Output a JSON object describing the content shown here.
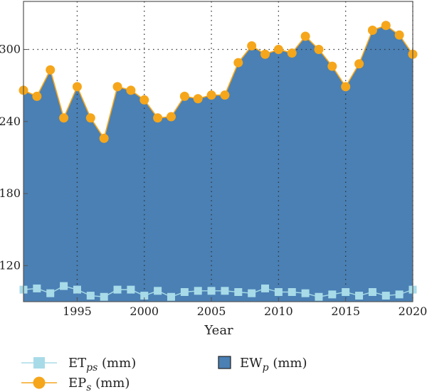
{
  "chart_data": {
    "type": "area",
    "title": "",
    "xlabel": "Year",
    "ylabel": "",
    "xlim": [
      1991,
      2020
    ],
    "ylim": [
      90,
      340
    ],
    "x_ticks": [
      1995,
      2000,
      2005,
      2010,
      2015,
      2020
    ],
    "y_ticks": [
      120,
      180,
      240,
      300
    ],
    "grid": "dotted vertical lines at year ticks, horizontal dotted line at 300",
    "legend_placement": "bottom",
    "x": [
      1991,
      1992,
      1993,
      1994,
      1995,
      1996,
      1997,
      1998,
      1999,
      2000,
      2001,
      2002,
      2003,
      2004,
      2005,
      2006,
      2007,
      2008,
      2009,
      2010,
      2011,
      2012,
      2013,
      2014,
      2015,
      2016,
      2017,
      2018,
      2019,
      2020
    ],
    "series": [
      {
        "key": "ew",
        "name_base": "EW",
        "name_sub": "p",
        "name_unit": " (mm)",
        "style": "filled area",
        "color": "#4a80b4",
        "values": [
          266,
          261,
          283,
          243,
          269,
          243,
          226,
          269,
          266,
          258,
          243,
          244,
          261,
          259,
          262,
          262,
          289,
          303,
          296,
          300,
          297,
          311,
          300,
          286,
          269,
          288,
          316,
          320,
          312,
          296
        ]
      },
      {
        "key": "ep",
        "name_base": "EP",
        "name_sub": "s",
        "name_unit": " (mm)",
        "style": "line with circle markers",
        "color": "#f5a61b",
        "values": [
          266,
          261,
          283,
          243,
          269,
          243,
          226,
          269,
          266,
          258,
          243,
          244,
          261,
          259,
          262,
          262,
          289,
          303,
          296,
          300,
          297,
          311,
          300,
          286,
          269,
          288,
          316,
          320,
          312,
          296
        ]
      },
      {
        "key": "et",
        "name_base": "ET",
        "name_sub": "ps",
        "name_unit": " (mm)",
        "style": "line with square markers",
        "color": "#a8dbe8",
        "values": [
          100,
          101,
          97,
          103,
          100,
          95,
          94,
          100,
          100,
          95,
          99,
          94,
          98,
          99,
          99,
          99,
          98,
          97,
          101,
          98,
          98,
          97,
          94,
          96,
          98,
          95,
          98,
          95,
          96,
          100
        ]
      }
    ]
  }
}
